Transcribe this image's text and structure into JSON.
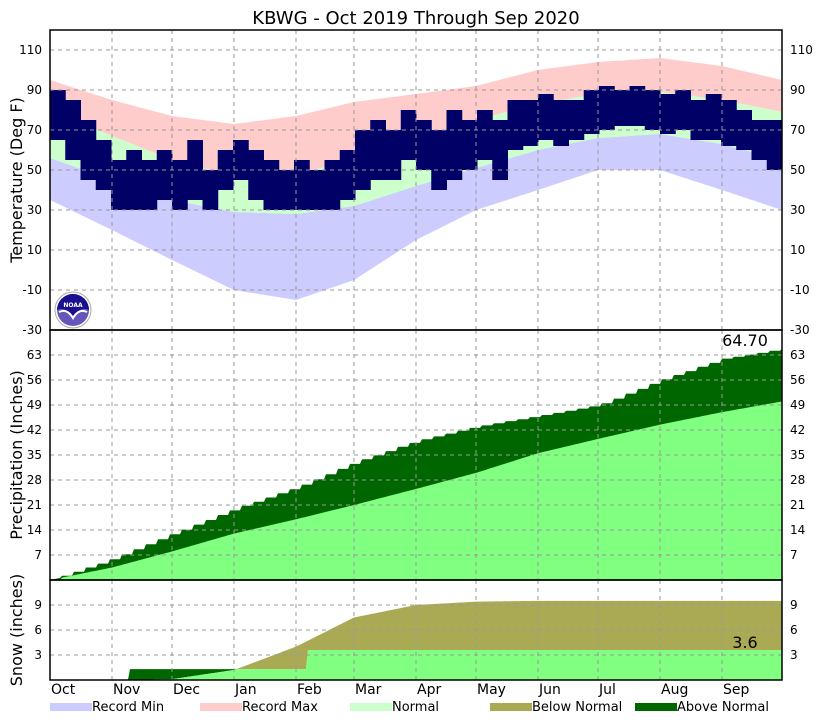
{
  "chart_data": {
    "type": "area",
    "title": "KBWG - Oct 2019 Through Sep 2020",
    "months": [
      "Oct",
      "Nov",
      "Dec",
      "Jan",
      "Feb",
      "Mar",
      "Apr",
      "May",
      "Jun",
      "Jul",
      "Aug",
      "Sep"
    ],
    "month_start_days": [
      0,
      31,
      61,
      92,
      123,
      152,
      183,
      213,
      244,
      274,
      305,
      336,
      366
    ],
    "legend": [
      {
        "label": "Record Min",
        "color": "#ccccff"
      },
      {
        "label": "Record Max",
        "color": "#ffcccc"
      },
      {
        "label": "Normal",
        "color": "#ccffcc"
      },
      {
        "label": "Below Normal",
        "color": "#aaaa55"
      },
      {
        "label": "Above Normal",
        "color": "#006600"
      }
    ],
    "legend_placement": "bottom",
    "temperature": {
      "ylabel": "Temperature (Deg F)",
      "ylim": [
        -30,
        120
      ],
      "ticks": [
        -30,
        -10,
        10,
        30,
        50,
        70,
        90,
        110
      ],
      "normal_high": [
        80,
        67,
        55,
        47,
        48,
        55,
        66,
        75,
        83,
        88,
        89,
        85,
        79
      ],
      "normal_low": [
        56,
        45,
        35,
        29,
        28,
        32,
        42,
        51,
        60,
        66,
        68,
        63,
        55
      ],
      "record_max": [
        95,
        85,
        77,
        73,
        77,
        84,
        88,
        92,
        100,
        104,
        106,
        102,
        95
      ],
      "record_min": [
        35,
        20,
        5,
        -10,
        -15,
        -5,
        15,
        30,
        40,
        50,
        50,
        40,
        30
      ],
      "actual_high_quarter_month": [
        90,
        85,
        75,
        65,
        55,
        60,
        55,
        60,
        55,
        65,
        50,
        60,
        65,
        60,
        55,
        50,
        55,
        50,
        55,
        60,
        70,
        75,
        70,
        80,
        75,
        70,
        80,
        75,
        80,
        75,
        85,
        85,
        88,
        85,
        85,
        90,
        92,
        90,
        92,
        90,
        88,
        90,
        85,
        88,
        85,
        80,
        75,
        75
      ],
      "actual_low_quarter_month": [
        65,
        55,
        45,
        40,
        30,
        30,
        30,
        35,
        30,
        35,
        30,
        40,
        45,
        35,
        30,
        30,
        30,
        30,
        30,
        35,
        40,
        45,
        45,
        55,
        50,
        40,
        45,
        50,
        55,
        45,
        60,
        62,
        65,
        62,
        65,
        68,
        70,
        72,
        72,
        70,
        68,
        70,
        65,
        65,
        62,
        60,
        55,
        50
      ],
      "actual_color": "#000066"
    },
    "precipitation": {
      "ylabel": "Precipitation (Inches)",
      "ylim": [
        0,
        70
      ],
      "ticks": [
        7,
        14,
        21,
        28,
        35,
        42,
        49,
        56,
        63
      ],
      "normal_cumulative": [
        0,
        3.5,
        8,
        13,
        17,
        21,
        25.5,
        30,
        35.5,
        39.5,
        43.5,
        47,
        50
      ],
      "actual_cumulative": [
        0,
        6,
        13,
        20,
        26,
        33,
        39,
        43,
        46,
        49,
        56,
        62,
        64.7
      ],
      "annotation": "64.70"
    },
    "snow": {
      "ylabel": "Snow (inches)",
      "ylim": [
        0,
        12
      ],
      "ticks": [
        3,
        6,
        9
      ],
      "normal_cumulative": [
        0,
        0,
        0.1,
        1.2,
        4,
        7.5,
        9,
        9.4,
        9.5,
        9.5,
        9.5,
        9.5,
        9.5
      ],
      "actual_events": [
        {
          "day": 40,
          "total": 1.3
        },
        {
          "day": 129,
          "total": 3.6
        }
      ],
      "annotation": "3.6"
    },
    "colors": {
      "record_min": "#ccccff",
      "record_max": "#ffcccc",
      "normal": "#ccffcc",
      "normal_fill": "#80ff80",
      "above": "#006600",
      "below": "#aaaa55"
    }
  }
}
